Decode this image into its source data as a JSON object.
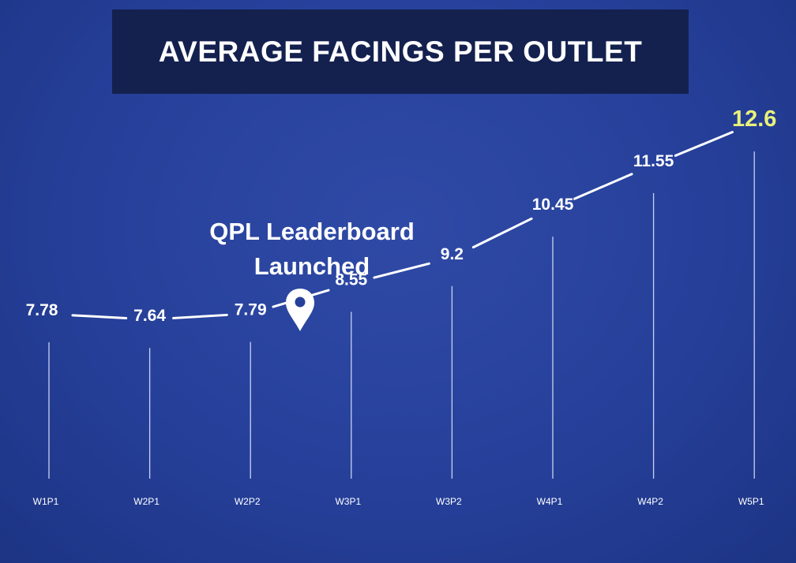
{
  "title": "AVERAGE FACINGS PER OUTLET",
  "annotation": {
    "line1": "QPL Leaderboard",
    "line2": "Launched"
  },
  "colors": {
    "background": "#26409a",
    "title_bg": "#14214f",
    "text": "#ffffff",
    "highlight": "#e9f27a"
  },
  "chart_data": {
    "type": "line",
    "title": "AVERAGE FACINGS PER OUTLET",
    "categories": [
      "W1P1",
      "W2P1",
      "W2P2",
      "W3P1",
      "W3P2",
      "W4P1",
      "W4P2",
      "W5P1"
    ],
    "values": [
      7.78,
      7.64,
      7.79,
      8.55,
      9.2,
      10.45,
      11.55,
      12.6
    ],
    "value_labels": [
      "7.78",
      "7.64",
      "7.79",
      "8.55",
      "9.2",
      "10.45",
      "11.55",
      "12.6"
    ],
    "highlight_index": 7,
    "annotation_after_category": "W2P2",
    "xlabel": "",
    "ylabel": "",
    "ylim": [
      4.1,
      13
    ],
    "grid": false
  }
}
